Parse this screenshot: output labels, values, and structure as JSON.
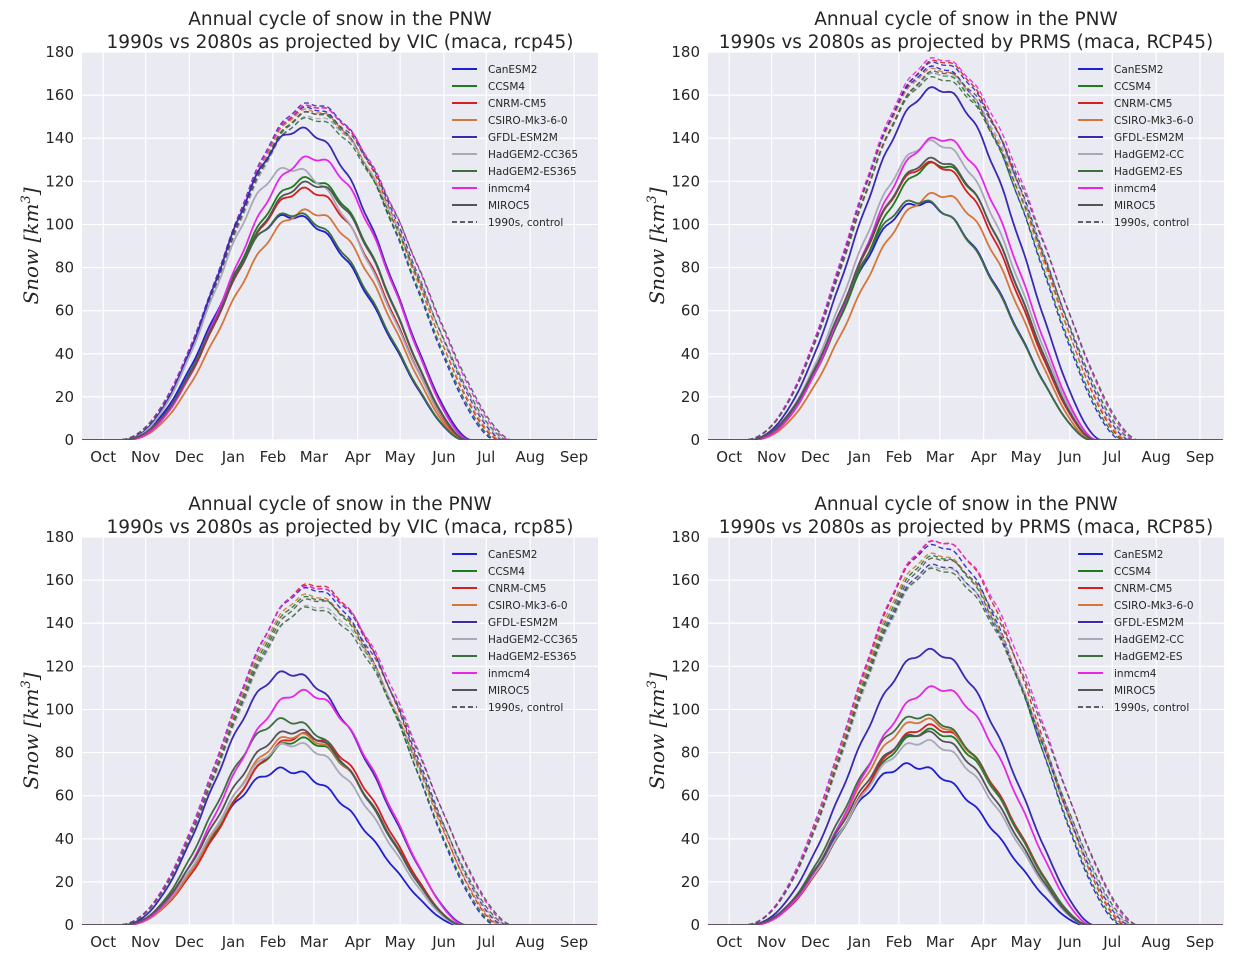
{
  "chart_data": [
    {
      "type": "line",
      "title": "Annual cycle of snow in the PNW",
      "subtitle": "1990s vs 2080s as projected by VIC (maca, rcp45)",
      "ylabel_main": "Snow",
      "ylabel_unit": "km",
      "ylabel_exp": "3",
      "xlabel": "",
      "ylim": [
        0,
        180
      ],
      "yticks": [
        "0",
        "20",
        "40",
        "60",
        "80",
        "100",
        "120",
        "140",
        "160",
        "180"
      ],
      "xticks": [
        "Oct",
        "Nov",
        "Dec",
        "Jan",
        "Feb",
        "Mar",
        "Apr",
        "May",
        "Jun",
        "Jul",
        "Aug",
        "Sep"
      ],
      "x_positions_day": [
        15,
        45,
        76,
        107,
        135,
        164,
        195,
        225,
        256,
        286,
        317,
        348
      ],
      "grid": true,
      "legend_position": "top-right",
      "series": [
        {
          "name": "CanESM2",
          "color": "#1f1fd4",
          "peak_future": 104,
          "peak_day": 147,
          "peak_control": 154
        },
        {
          "name": "CCSM4",
          "color": "#1e7b1e",
          "peak_future": 121,
          "peak_day": 160,
          "peak_control": 152
        },
        {
          "name": "CNRM-CM5",
          "color": "#d62020",
          "peak_future": 116,
          "peak_day": 158,
          "peak_control": 155
        },
        {
          "name": "CSIRO-Mk3-6-0",
          "color": "#d4763a",
          "peak_future": 106,
          "peak_day": 160,
          "peak_control": 153
        },
        {
          "name": "GFDL-ESM2M",
          "color": "#3a2ab0",
          "peak_future": 144,
          "peak_day": 154,
          "peak_control": 156
        },
        {
          "name": "HadGEM2-CC365",
          "color": "#a8a8b8",
          "peak_future": 126,
          "peak_day": 147,
          "peak_control": 150
        },
        {
          "name": "HadGEM2-ES365",
          "color": "#3e6e3e",
          "peak_future": 105,
          "peak_day": 148,
          "peak_control": 149
        },
        {
          "name": "inmcm4",
          "color": "#e627e6",
          "peak_future": 131,
          "peak_day": 163,
          "peak_control": 155
        },
        {
          "name": "MIROC5",
          "color": "#555555",
          "peak_future": 119,
          "peak_day": 161,
          "peak_control": 152
        }
      ],
      "control_label": "1990s, control"
    },
    {
      "type": "line",
      "title": "Annual cycle of snow in the PNW",
      "subtitle": "1990s vs 2080s as projected by PRMS (maca, RCP45)",
      "ylabel_main": "Snow",
      "ylabel_unit": "km",
      "ylabel_exp": "3",
      "xlabel": "",
      "ylim": [
        0,
        180
      ],
      "yticks": [
        "0",
        "20",
        "40",
        "60",
        "80",
        "100",
        "120",
        "140",
        "160",
        "180"
      ],
      "xticks": [
        "Oct",
        "Nov",
        "Dec",
        "Jan",
        "Feb",
        "Mar",
        "Apr",
        "May",
        "Jun",
        "Jul",
        "Aug",
        "Sep"
      ],
      "x_positions_day": [
        15,
        45,
        76,
        107,
        135,
        164,
        195,
        225,
        256,
        286,
        317,
        348
      ],
      "grid": true,
      "legend_position": "top-right",
      "series": [
        {
          "name": "CanESM2",
          "color": "#1f1fd4",
          "peak_future": 110,
          "peak_day": 150,
          "peak_control": 173
        },
        {
          "name": "CCSM4",
          "color": "#1e7b1e",
          "peak_future": 128,
          "peak_day": 162,
          "peak_control": 170
        },
        {
          "name": "CNRM-CM5",
          "color": "#d62020",
          "peak_future": 128,
          "peak_day": 158,
          "peak_control": 176
        },
        {
          "name": "CSIRO-Mk3-6-0",
          "color": "#d4763a",
          "peak_future": 114,
          "peak_day": 163,
          "peak_control": 172
        },
        {
          "name": "GFDL-ESM2M",
          "color": "#3a2ab0",
          "peak_future": 163,
          "peak_day": 162,
          "peak_control": 175
        },
        {
          "name": "HadGEM2-CC",
          "color": "#a8a8b8",
          "peak_future": 138,
          "peak_day": 159,
          "peak_control": 170
        },
        {
          "name": "HadGEM2-ES",
          "color": "#3e6e3e",
          "peak_future": 111,
          "peak_day": 148,
          "peak_control": 168
        },
        {
          "name": "inmcm4",
          "color": "#e627e6",
          "peak_future": 140,
          "peak_day": 164,
          "peak_control": 177
        },
        {
          "name": "MIROC5",
          "color": "#555555",
          "peak_future": 130,
          "peak_day": 160,
          "peak_control": 171
        }
      ],
      "control_label": "1990s, control"
    },
    {
      "type": "line",
      "title": "Annual cycle of snow in the PNW",
      "subtitle": "1990s vs 2080s as projected by VIC (maca, rcp85)",
      "ylabel_main": "Snow",
      "ylabel_unit": "km",
      "ylabel_exp": "3",
      "xlabel": "",
      "ylim": [
        0,
        180
      ],
      "yticks": [
        "0",
        "20",
        "40",
        "60",
        "80",
        "100",
        "120",
        "140",
        "160",
        "180"
      ],
      "xticks": [
        "Oct",
        "Nov",
        "Dec",
        "Jan",
        "Feb",
        "Mar",
        "Apr",
        "May",
        "Jun",
        "Jul",
        "Aug",
        "Sep"
      ],
      "x_positions_day": [
        15,
        45,
        76,
        107,
        135,
        164,
        195,
        225,
        256,
        286,
        317,
        348
      ],
      "grid": true,
      "legend_position": "top-right",
      "series": [
        {
          "name": "CanESM2",
          "color": "#1f1fd4",
          "peak_future": 72,
          "peak_day": 142,
          "peak_control": 156
        },
        {
          "name": "CCSM4",
          "color": "#1e7b1e",
          "peak_future": 86,
          "peak_day": 155,
          "peak_control": 152
        },
        {
          "name": "CNRM-CM5",
          "color": "#d62020",
          "peak_future": 88,
          "peak_day": 157,
          "peak_control": 158
        },
        {
          "name": "CSIRO-Mk3-6-0",
          "color": "#d4763a",
          "peak_future": 88,
          "peak_day": 152,
          "peak_control": 153
        },
        {
          "name": "GFDL-ESM2M",
          "color": "#3a2ab0",
          "peak_future": 117,
          "peak_day": 145,
          "peak_control": 157
        },
        {
          "name": "HadGEM2-CC365",
          "color": "#a8a8b8",
          "peak_future": 84,
          "peak_day": 149,
          "peak_control": 148
        },
        {
          "name": "HadGEM2-ES365",
          "color": "#3e6e3e",
          "peak_future": 95,
          "peak_day": 143,
          "peak_control": 147
        },
        {
          "name": "inmcm4",
          "color": "#e627e6",
          "peak_future": 108,
          "peak_day": 156,
          "peak_control": 157
        },
        {
          "name": "MIROC5",
          "color": "#555555",
          "peak_future": 90,
          "peak_day": 150,
          "peak_control": 151
        }
      ],
      "control_label": "1990s, control"
    },
    {
      "type": "line",
      "title": "Annual cycle of snow in the PNW",
      "subtitle": "1990s vs 2080s as projected by PRMS (maca, RCP85)",
      "ylabel_main": "Snow",
      "ylabel_unit": "km",
      "ylabel_exp": "3",
      "xlabel": "",
      "ylim": [
        0,
        180
      ],
      "yticks": [
        "0",
        "20",
        "40",
        "60",
        "80",
        "100",
        "120",
        "140",
        "160",
        "180"
      ],
      "xticks": [
        "Oct",
        "Nov",
        "Dec",
        "Jan",
        "Feb",
        "Mar",
        "Apr",
        "May",
        "Jun",
        "Jul",
        "Aug",
        "Sep"
      ],
      "x_positions_day": [
        15,
        45,
        76,
        107,
        135,
        164,
        195,
        225,
        256,
        286,
        317,
        348
      ],
      "grid": true,
      "legend_position": "top-right",
      "series": [
        {
          "name": "CanESM2",
          "color": "#1f1fd4",
          "peak_future": 74,
          "peak_day": 142,
          "peak_control": 176
        },
        {
          "name": "CCSM4",
          "color": "#1e7b1e",
          "peak_future": 90,
          "peak_day": 157,
          "peak_control": 171
        },
        {
          "name": "CNRM-CM5",
          "color": "#d62020",
          "peak_future": 92,
          "peak_day": 157,
          "peak_control": 178
        },
        {
          "name": "CSIRO-Mk3-6-0",
          "color": "#d4763a",
          "peak_future": 95,
          "peak_day": 152,
          "peak_control": 172
        },
        {
          "name": "GFDL-ESM2M",
          "color": "#3a2ab0",
          "peak_future": 127,
          "peak_day": 157,
          "peak_control": 167
        },
        {
          "name": "HadGEM2-CC",
          "color": "#a8a8b8",
          "peak_future": 85,
          "peak_day": 152,
          "peak_control": 166
        },
        {
          "name": "HadGEM2-ES",
          "color": "#3e6e3e",
          "peak_future": 97,
          "peak_day": 150,
          "peak_control": 165
        },
        {
          "name": "inmcm4",
          "color": "#e627e6",
          "peak_future": 110,
          "peak_day": 162,
          "peak_control": 178
        },
        {
          "name": "MIROC5",
          "color": "#555555",
          "peak_future": 89,
          "peak_day": 152,
          "peak_control": 170
        }
      ],
      "control_label": "1990s, control"
    }
  ]
}
